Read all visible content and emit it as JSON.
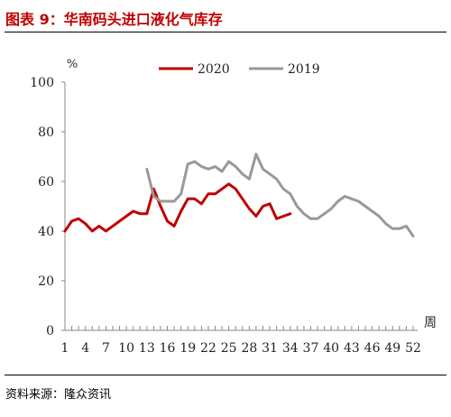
{
  "title": "图表 9：华南码头进口液化气库存",
  "source": "资料来源：隆众资讯",
  "colors": {
    "title": "#c00000",
    "s2020": "#c00000",
    "s2019": "#999999"
  },
  "chart_data": {
    "type": "line",
    "ylabel": "%",
    "xlabel": "周",
    "ylim": [
      0,
      100
    ],
    "yticks": [
      0,
      20,
      40,
      60,
      80,
      100
    ],
    "xlim": [
      1,
      52
    ],
    "xtick_labels": [
      "1",
      "4",
      "7",
      "10",
      "13",
      "16",
      "19",
      "22",
      "25",
      "28",
      "31",
      "34",
      "37",
      "40",
      "43",
      "46",
      "49",
      "52"
    ],
    "legend_position": "top",
    "series": [
      {
        "name": "2020",
        "color": "#c00000",
        "x": [
          1,
          2,
          3,
          4,
          5,
          6,
          7,
          8,
          9,
          10,
          11,
          12,
          13,
          14,
          15,
          16,
          17,
          18,
          19,
          20,
          21,
          22,
          23,
          24,
          25,
          26,
          27,
          28,
          29,
          30,
          31,
          32,
          33,
          34
        ],
        "y": [
          40,
          44,
          45,
          43,
          40,
          42,
          40,
          42,
          44,
          46,
          48,
          47,
          47,
          57,
          50,
          44,
          42,
          48,
          53,
          53,
          51,
          55,
          55,
          57,
          59,
          57,
          53,
          49,
          46,
          50,
          51,
          45,
          46,
          47
        ]
      },
      {
        "name": "2019",
        "color": "#999999",
        "x": [
          13,
          14,
          15,
          16,
          17,
          18,
          19,
          20,
          21,
          22,
          23,
          24,
          25,
          26,
          27,
          28,
          29,
          30,
          31,
          32,
          33,
          34,
          35,
          36,
          37,
          38,
          39,
          40,
          41,
          42,
          43,
          44,
          45,
          46,
          47,
          48,
          49,
          50,
          51,
          52
        ],
        "y": [
          65,
          54,
          52,
          52,
          52,
          55,
          67,
          68,
          66,
          65,
          66,
          64,
          68,
          66,
          63,
          61,
          71,
          65,
          63,
          61,
          57,
          55,
          50,
          47,
          45,
          45,
          47,
          49,
          52,
          54,
          53,
          52,
          50,
          48,
          46,
          43,
          41,
          41,
          42,
          38
        ]
      }
    ]
  }
}
